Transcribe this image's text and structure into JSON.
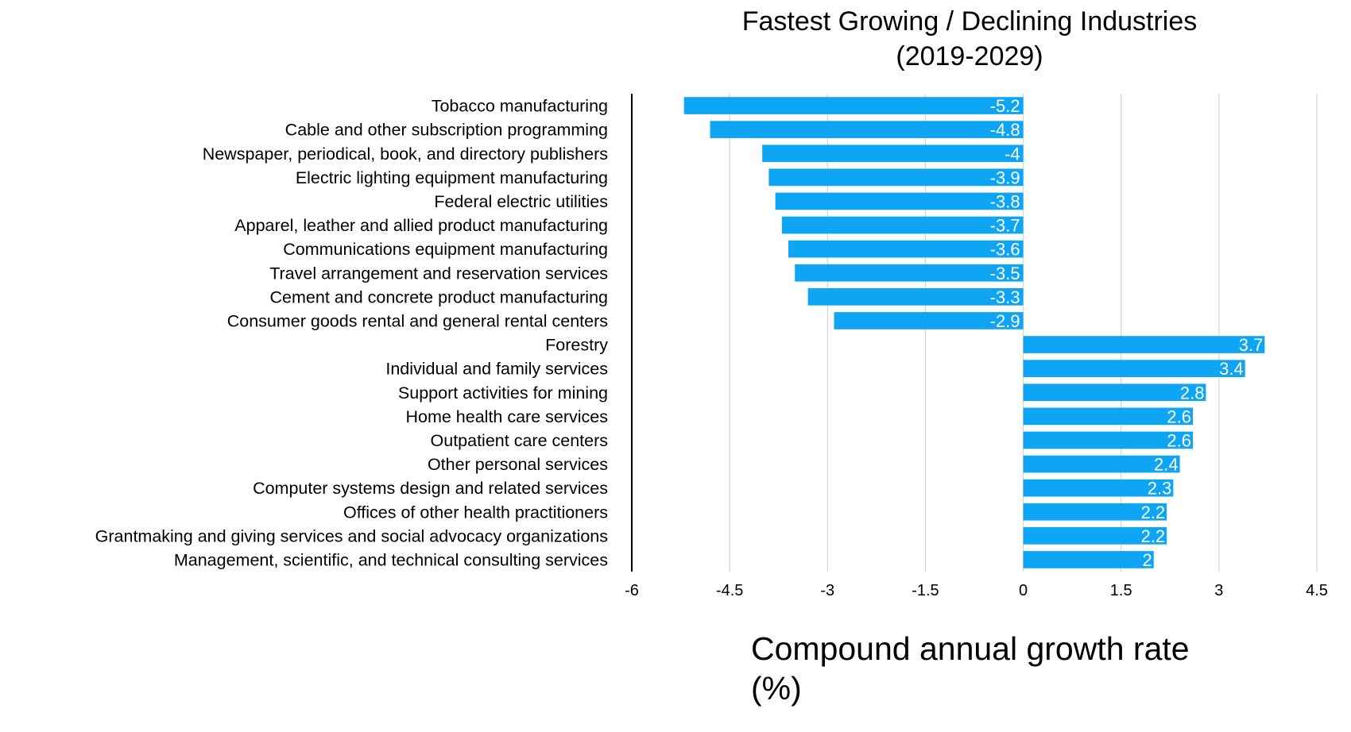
{
  "chart_data": {
    "type": "bar",
    "orientation": "horizontal",
    "title": "Fastest Growing / Declining Industries",
    "subtitle": "(2019-2029)",
    "xlabel": "Compound annual growth rate (%)",
    "ylabel": "",
    "categories": [
      "Tobacco manufacturing",
      "Cable and other subscription programming",
      "Newspaper, periodical, book, and directory publishers",
      "Electric lighting equipment manufacturing",
      "Federal electric utilities",
      "Apparel, leather and allied product manufacturing",
      "Communications equipment manufacturing",
      "Travel arrangement and reservation services",
      "Cement and concrete product manufacturing",
      "Consumer goods rental and general rental centers",
      "Forestry",
      "Individual and family services",
      "Support activities for mining",
      "Home health care services",
      "Outpatient care centers",
      "Other personal services",
      "Computer systems design and related services",
      "Offices of other health practitioners",
      "Grantmaking and giving services and social advocacy organizations",
      "Management, scientific, and technical consulting services"
    ],
    "values": [
      -5.2,
      -4.8,
      -4,
      -3.9,
      -3.8,
      -3.7,
      -3.6,
      -3.5,
      -3.3,
      -2.9,
      3.7,
      3.4,
      2.8,
      2.6,
      2.6,
      2.4,
      2.3,
      2.2,
      2.2,
      2
    ],
    "value_labels": [
      "-5.2",
      "-4.8",
      "-4",
      "-3.9",
      "-3.8",
      "-3.7",
      "-3.6",
      "-3.5",
      "-3.3",
      "-2.9",
      "3.7",
      "3.4",
      "2.8",
      "2.6",
      "2.6",
      "2.4",
      "2.3",
      "2.2",
      "2.2",
      "2"
    ],
    "xlim": [
      -6,
      4.5
    ],
    "xticks": [
      -6,
      -4.5,
      -3,
      -1.5,
      0,
      1.5,
      3,
      4.5
    ],
    "xtick_labels": [
      "-6",
      "-4.5",
      "-3",
      "-1.5",
      "0",
      "1.5",
      "3",
      "4.5"
    ],
    "grid": true,
    "legend": "none",
    "bar_color": "#0ea5f5"
  }
}
